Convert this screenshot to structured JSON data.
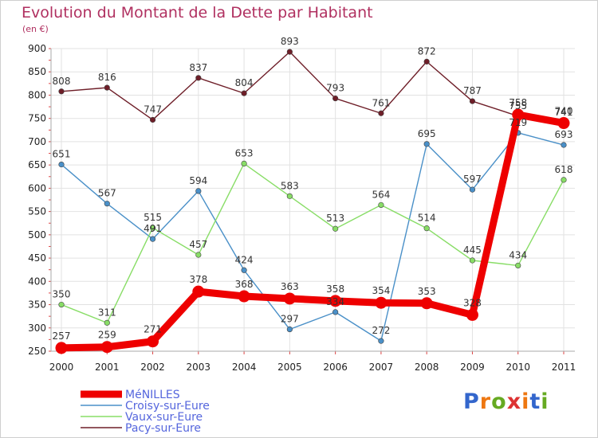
{
  "header": {
    "title": "Evolution du Montant de la Dette par Habitant",
    "unit": "(en €)"
  },
  "logo": {
    "text": "Proxiti",
    "letter_colors": [
      "#3366cc",
      "#ee7711",
      "#66aa22",
      "#dd3333",
      "#ee7711",
      "#3366cc",
      "#66aa22"
    ]
  },
  "chart_data": {
    "type": "line",
    "title": "Evolution du Montant de la Dette par Habitant",
    "ylabel": "(en €)",
    "xlabel": "",
    "x": [
      "2000",
      "2001",
      "2002",
      "2003",
      "2004",
      "2005",
      "2006",
      "2007",
      "2008",
      "2009",
      "2010",
      "2011"
    ],
    "ylim": [
      250,
      900
    ],
    "yticks": [
      "250",
      "300",
      "350",
      "400",
      "450",
      "500",
      "550",
      "600",
      "650",
      "700",
      "750",
      "800",
      "850",
      "900"
    ],
    "grid": true,
    "legend": "bottom-left",
    "series": [
      {
        "name": "Pacy-sur-Eure",
        "color": "#6e1e28",
        "values": [
          808,
          816,
          747,
          837,
          804,
          893,
          793,
          761,
          872,
          787,
          755,
          741
        ],
        "labels": [
          "808",
          "816",
          "747",
          "837",
          "804",
          "893",
          "793",
          "761",
          "872",
          "787",
          "755",
          "741"
        ]
      },
      {
        "name": "Croisy-sur-Eure",
        "color": "#4a90c8",
        "values": [
          651,
          567,
          491,
          594,
          424,
          297,
          334,
          272,
          695,
          597,
          719,
          693
        ],
        "labels": [
          "651",
          "567",
          "491",
          "594",
          "424",
          "297",
          "334",
          "272",
          "695",
          "597",
          "719",
          "693"
        ]
      },
      {
        "name": "Vaux-sur-Eure",
        "color": "#88dd66",
        "values": [
          350,
          311,
          515,
          457,
          653,
          583,
          513,
          564,
          514,
          445,
          434,
          618
        ],
        "labels": [
          "350",
          "311",
          "515",
          "457",
          "653",
          "583",
          "513",
          "564",
          "514",
          "445",
          "434",
          "618"
        ]
      },
      {
        "name": "MéNILLES",
        "color": "#ee0000",
        "values": [
          257,
          259,
          271,
          378,
          368,
          363,
          358,
          354,
          353,
          328,
          758,
          740
        ],
        "labels": [
          "257",
          "259",
          "271",
          "378",
          "368",
          "363",
          "358",
          "354",
          "353",
          "328",
          "758",
          "740"
        ]
      }
    ],
    "legend_order": [
      "MéNILLES",
      "Croisy-sur-Eure",
      "Vaux-sur-Eure",
      "Pacy-sur-Eure"
    ]
  }
}
